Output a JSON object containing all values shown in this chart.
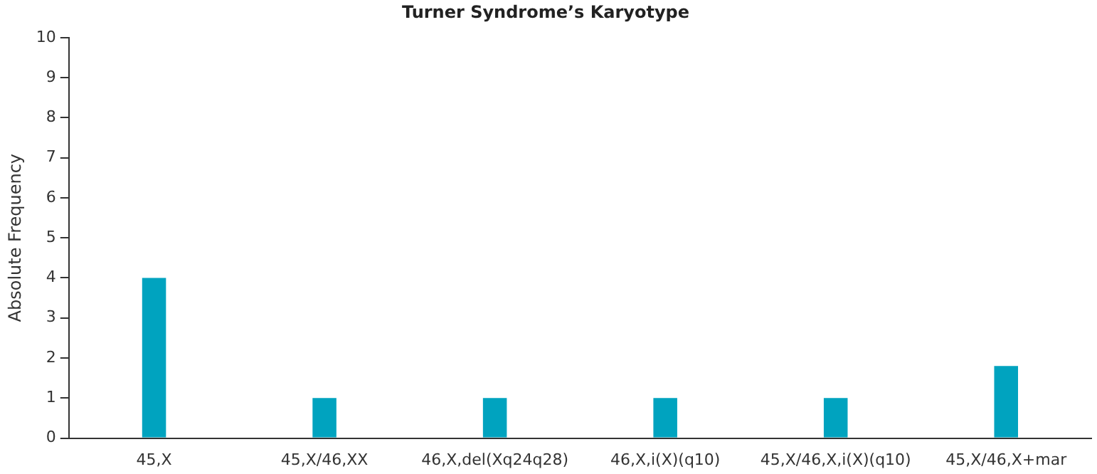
{
  "chart_data": {
    "type": "bar",
    "title": "Turner Syndrome’s Karyotype",
    "ylabel": "Absolute Frequency",
    "categories": [
      "45,X",
      "45,X/46,XX",
      "46,X,del(Xq24q28)",
      "46,X,i(X)(q10)",
      "45,X/46,X,i(X)(q10)",
      "45,X/46,X+mar"
    ],
    "values": [
      4,
      1,
      1,
      1,
      1,
      1.8
    ],
    "color": "#00a3bf",
    "ylim": [
      0,
      10
    ],
    "yticks": [
      0,
      1,
      2,
      3,
      4,
      5,
      6,
      7,
      8,
      9,
      10
    ],
    "grid": false,
    "legend": false
  }
}
